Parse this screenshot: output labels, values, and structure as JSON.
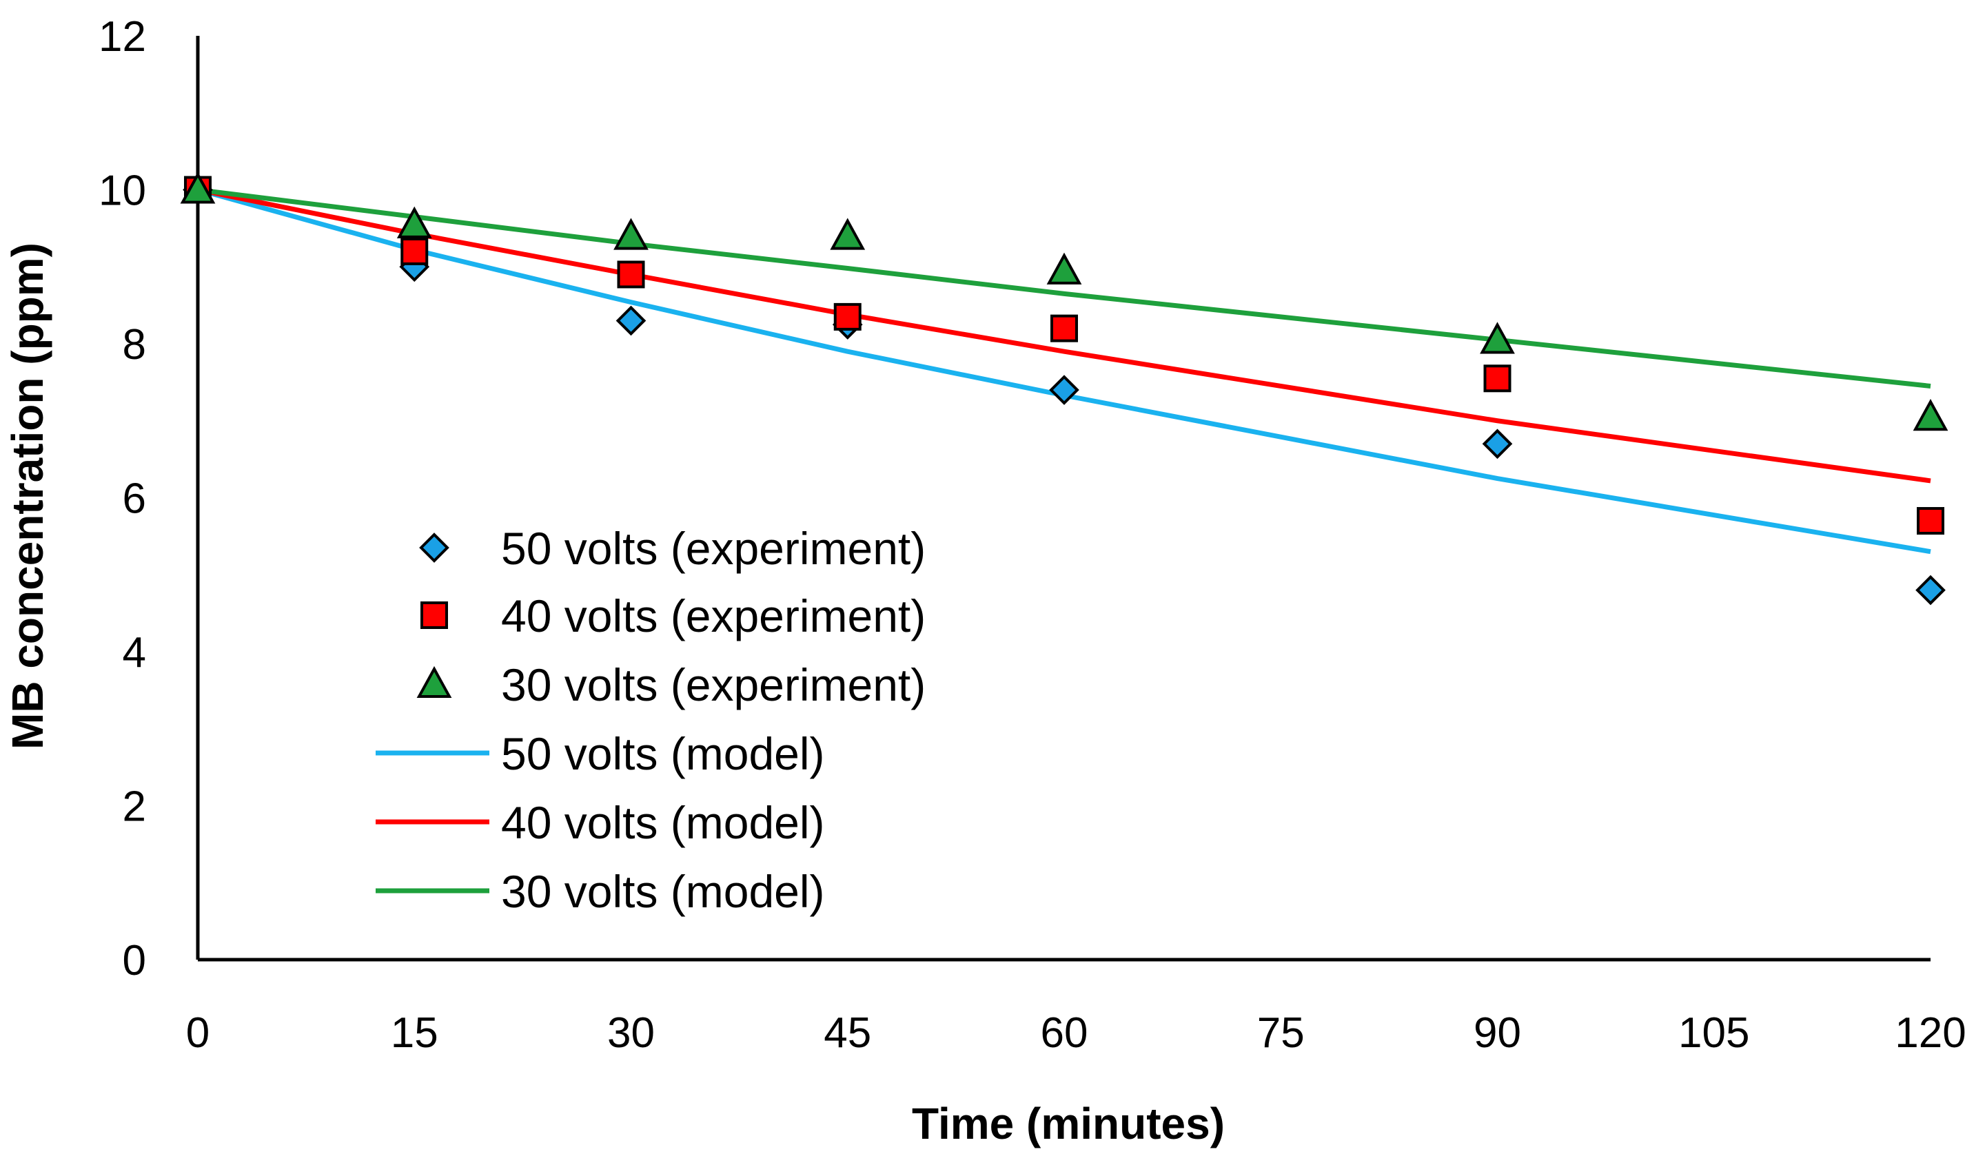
{
  "chart_data": {
    "type": "scatter",
    "title": "",
    "xlabel": "Time (minutes)",
    "ylabel": "MB concentration (ppm)",
    "xlim": [
      0,
      120
    ],
    "ylim": [
      0,
      12
    ],
    "xticks": [
      0,
      15,
      30,
      45,
      60,
      75,
      90,
      105,
      120
    ],
    "yticks": [
      0,
      2,
      4,
      6,
      8,
      10,
      12
    ],
    "grid": false,
    "legend_position": "left-center",
    "series": [
      {
        "name": "50 volts (experiment)",
        "kind": "marker",
        "marker": "diamond",
        "color": "#1aa0e6",
        "x": [
          0,
          15,
          30,
          45,
          60,
          90,
          120
        ],
        "y": [
          10.0,
          9.0,
          8.3,
          8.25,
          7.4,
          6.7,
          4.8
        ]
      },
      {
        "name": "40 volts (experiment)",
        "kind": "marker",
        "marker": "square",
        "color": "#ff0000",
        "x": [
          0,
          15,
          30,
          45,
          60,
          90,
          120
        ],
        "y": [
          10.0,
          9.2,
          8.9,
          8.35,
          8.2,
          7.55,
          5.7
        ]
      },
      {
        "name": "30 volts (experiment)",
        "kind": "marker",
        "marker": "triangle",
        "color": "#1ea03c",
        "x": [
          0,
          15,
          30,
          45,
          60,
          90,
          120
        ],
        "y": [
          10.0,
          9.55,
          9.4,
          9.4,
          8.95,
          8.05,
          7.05
        ]
      },
      {
        "name": "50 volts (model)",
        "kind": "line",
        "color": "#1ab2ef",
        "x": [
          0,
          15,
          30,
          45,
          60,
          90,
          120
        ],
        "y": [
          10.0,
          9.22,
          8.54,
          7.9,
          7.33,
          6.25,
          5.3
        ]
      },
      {
        "name": "40 volts (model)",
        "kind": "line",
        "color": "#ff0000",
        "x": [
          0,
          15,
          30,
          45,
          60,
          90,
          120
        ],
        "y": [
          10.0,
          9.43,
          8.9,
          8.38,
          7.9,
          7.0,
          6.22
        ]
      },
      {
        "name": "30 volts (model)",
        "kind": "line",
        "color": "#1ea03c",
        "x": [
          0,
          15,
          30,
          45,
          60,
          90,
          120
        ],
        "y": [
          10.0,
          9.65,
          9.3,
          8.98,
          8.65,
          8.05,
          7.45
        ]
      }
    ]
  }
}
